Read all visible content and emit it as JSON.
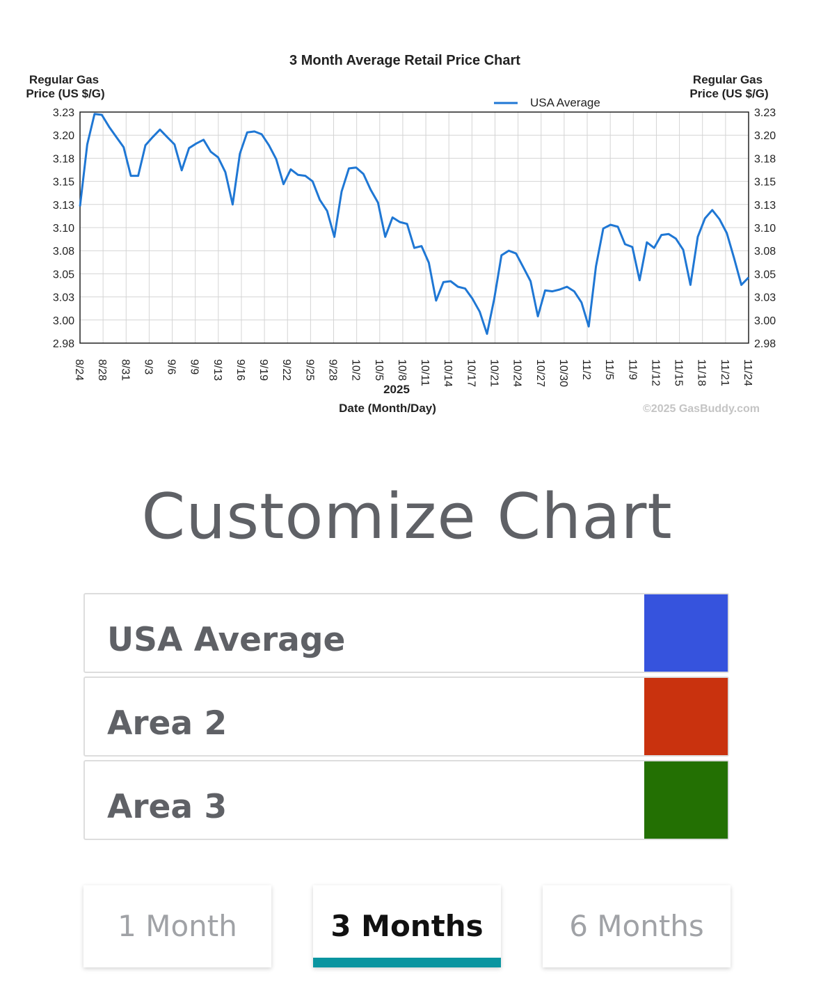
{
  "chart_data": {
    "type": "line",
    "title": "3 Month Average Retail Price Chart",
    "ylabel_left": [
      "Regular Gas",
      "Price (US $/G)"
    ],
    "ylabel_right": [
      "Regular Gas",
      "Price (US $/G)"
    ],
    "xlabel": "Date (Month/Day)",
    "year_label": "2025",
    "copyright": "©2025 GasBuddy.com",
    "ylim": [
      2.975,
      3.225
    ],
    "yticks": [
      "3.23",
      "3.20",
      "3.18",
      "3.15",
      "3.13",
      "3.10",
      "3.08",
      "3.05",
      "3.03",
      "3.00",
      "2.98"
    ],
    "xticks": [
      "8/24",
      "8/28",
      "8/31",
      "9/3",
      "9/6",
      "9/9",
      "9/13",
      "9/16",
      "9/19",
      "9/22",
      "9/25",
      "9/28",
      "10/2",
      "10/5",
      "10/8",
      "10/11",
      "10/14",
      "10/17",
      "10/21",
      "10/24",
      "10/27",
      "10/30",
      "11/2",
      "11/5",
      "11/9",
      "11/12",
      "11/15",
      "11/18",
      "11/21",
      "11/24"
    ],
    "grid": true,
    "legend_position": "top-right",
    "series": [
      {
        "name": "USA Average",
        "color": "#1f77d4",
        "x": [
          0,
          1,
          2,
          3,
          4,
          5,
          6,
          7,
          8,
          9,
          10,
          11,
          12,
          13,
          14,
          15,
          16,
          17,
          18,
          19,
          20,
          21,
          22,
          23,
          24,
          25,
          26,
          27,
          28,
          29,
          30,
          31,
          32,
          33,
          34,
          35,
          36,
          37,
          38,
          39,
          40,
          41,
          42,
          43,
          44,
          45,
          46,
          47,
          48,
          49,
          50,
          51,
          52,
          53,
          54,
          55,
          56,
          57,
          58,
          59,
          60,
          61,
          62,
          63,
          64,
          65,
          66,
          67,
          68,
          69,
          70,
          71,
          72,
          73,
          74,
          75,
          76,
          77,
          78,
          79,
          80,
          81,
          82,
          83,
          84,
          85,
          86,
          87,
          88,
          89,
          90,
          91,
          92
        ],
        "values": [
          3.123,
          3.19,
          3.223,
          3.222,
          3.209,
          3.198,
          3.187,
          3.156,
          3.156,
          3.189,
          3.198,
          3.206,
          3.198,
          3.19,
          3.162,
          3.186,
          3.191,
          3.195,
          3.182,
          3.176,
          3.16,
          3.125,
          3.18,
          3.203,
          3.204,
          3.201,
          3.189,
          3.174,
          3.147,
          3.163,
          3.157,
          3.156,
          3.15,
          3.13,
          3.118,
          3.09,
          3.139,
          3.164,
          3.165,
          3.158,
          3.141,
          3.127,
          3.09,
          3.111,
          3.106,
          3.104,
          3.078,
          3.08,
          3.062,
          3.021,
          3.041,
          3.042,
          3.036,
          3.034,
          3.023,
          3.009,
          2.985,
          3.023,
          3.07,
          3.075,
          3.072,
          3.057,
          3.042,
          3.004,
          3.032,
          3.031,
          3.033,
          3.036,
          3.031,
          3.019,
          2.993,
          3.058,
          3.099,
          3.103,
          3.101,
          3.082,
          3.079,
          3.043,
          3.084,
          3.078,
          3.092,
          3.093,
          3.088,
          3.076,
          3.038,
          3.09,
          3.11,
          3.119,
          3.109,
          3.094,
          3.067,
          3.038,
          3.046
        ]
      }
    ]
  },
  "customize": {
    "title": "Customize Chart",
    "areas": [
      {
        "label": "USA Average",
        "color": "#3653dd"
      },
      {
        "label": "Area 2",
        "color": "#c9320e"
      },
      {
        "label": "Area 3",
        "color": "#237003"
      }
    ]
  },
  "ranges": {
    "options": [
      "1 Month",
      "3 Months",
      "6 Months"
    ],
    "selected": "3 Months"
  }
}
